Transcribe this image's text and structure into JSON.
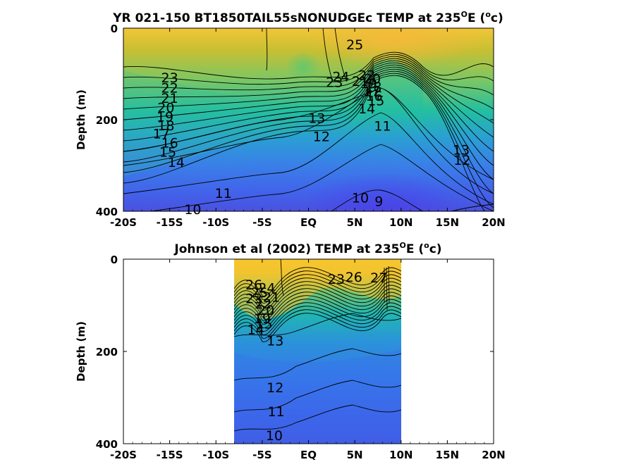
{
  "chart_data": [
    {
      "type": "heatmap",
      "title_main": "YR 021-150 BT1850TAIL55sNONUDGEc TEMP at 235",
      "title_sup": "O",
      "title_mid": "E (",
      "title_sup2": "o",
      "title_end": "c)",
      "ylabel": "Depth (m)",
      "x_ticks": [
        "-20S",
        "-15S",
        "-10S",
        "-5S",
        "EQ",
        "5N",
        "10N",
        "15N",
        "20N"
      ],
      "x_tick_values": [
        -20,
        -15,
        -10,
        -5,
        0,
        5,
        10,
        15,
        20
      ],
      "y_ticks": [
        "0",
        "200",
        "400"
      ],
      "y_tick_values": [
        0,
        200,
        400
      ],
      "xlim": [
        -20,
        20
      ],
      "ylim": [
        400,
        0
      ],
      "data_extent": [
        -20,
        20
      ],
      "contour_labels": [
        {
          "text": "25",
          "x": 5.0,
          "y": 35
        },
        {
          "text": "24",
          "x": 3.5,
          "y": 105
        },
        {
          "text": "23",
          "x": 2.8,
          "y": 118
        },
        {
          "text": "23",
          "x": -15.0,
          "y": 108
        },
        {
          "text": "22",
          "x": -15.0,
          "y": 130
        },
        {
          "text": "21",
          "x": -15.0,
          "y": 152
        },
        {
          "text": "20",
          "x": -15.4,
          "y": 173
        },
        {
          "text": "19",
          "x": -15.5,
          "y": 193
        },
        {
          "text": "18",
          "x": -15.4,
          "y": 212
        },
        {
          "text": "17",
          "x": -15.9,
          "y": 230
        },
        {
          "text": "16",
          "x": -15.0,
          "y": 250
        },
        {
          "text": "15",
          "x": -15.2,
          "y": 270
        },
        {
          "text": "14",
          "x": -14.3,
          "y": 292
        },
        {
          "text": "13",
          "x": 0.9,
          "y": 196
        },
        {
          "text": "12",
          "x": 1.4,
          "y": 236
        },
        {
          "text": "11",
          "x": 8.0,
          "y": 213
        },
        {
          "text": "10",
          "x": 5.6,
          "y": 370
        },
        {
          "text": "9",
          "x": 7.6,
          "y": 378
        },
        {
          "text": "13",
          "x": 16.5,
          "y": 265
        },
        {
          "text": "12",
          "x": 16.6,
          "y": 288
        },
        {
          "text": "11",
          "x": -9.2,
          "y": 360
        },
        {
          "text": "10",
          "x": -12.5,
          "y": 395
        },
        {
          "text": "14",
          "x": 6.3,
          "y": 175
        },
        {
          "text": "15",
          "x": 7.3,
          "y": 158
        },
        {
          "text": "16",
          "x": 7.1,
          "y": 148
        },
        {
          "text": "17",
          "x": 6.8,
          "y": 138
        },
        {
          "text": "18",
          "x": 7.0,
          "y": 128
        },
        {
          "text": "19",
          "x": 6.5,
          "y": 120
        },
        {
          "text": "20",
          "x": 6.9,
          "y": 110
        },
        {
          "text": "21",
          "x": 5.6,
          "y": 115
        },
        {
          "text": "22",
          "x": 6.3,
          "y": 102
        }
      ]
    },
    {
      "type": "heatmap",
      "title_main": "Johnson et al (2002) TEMP at 235",
      "title_sup": "O",
      "title_mid": "E (",
      "title_sup2": "o",
      "title_end": "c)",
      "ylabel": "Depth (m)",
      "x_ticks": [
        "-20S",
        "-15S",
        "-10S",
        "-5S",
        "EQ",
        "5N",
        "10N",
        "15N",
        "20N"
      ],
      "x_tick_values": [
        -20,
        -15,
        -10,
        -5,
        0,
        5,
        10,
        15,
        20
      ],
      "y_ticks": [
        "0",
        "200",
        "400"
      ],
      "y_tick_values": [
        0,
        200,
        400
      ],
      "xlim": [
        -20,
        20
      ],
      "ylim": [
        400,
        0
      ],
      "data_extent": [
        -8,
        10
      ],
      "contour_labels": [
        {
          "text": "26",
          "x": -5.9,
          "y": 55
        },
        {
          "text": "25",
          "x": -5.3,
          "y": 72
        },
        {
          "text": "24",
          "x": -4.5,
          "y": 62
        },
        {
          "text": "23",
          "x": -5.9,
          "y": 85
        },
        {
          "text": "22",
          "x": -4.9,
          "y": 96
        },
        {
          "text": "21",
          "x": -4.0,
          "y": 82
        },
        {
          "text": "20",
          "x": -4.6,
          "y": 110
        },
        {
          "text": "19",
          "x": -5.0,
          "y": 128
        },
        {
          "text": "15",
          "x": -4.8,
          "y": 140
        },
        {
          "text": "14",
          "x": -5.7,
          "y": 152
        },
        {
          "text": "13",
          "x": -3.6,
          "y": 176
        },
        {
          "text": "23",
          "x": 3.0,
          "y": 43
        },
        {
          "text": "26",
          "x": 4.9,
          "y": 38
        },
        {
          "text": "27",
          "x": 7.6,
          "y": 40
        },
        {
          "text": "12",
          "x": -3.6,
          "y": 278
        },
        {
          "text": "11",
          "x": -3.5,
          "y": 330
        },
        {
          "text": "10",
          "x": -3.7,
          "y": 382
        }
      ]
    }
  ]
}
